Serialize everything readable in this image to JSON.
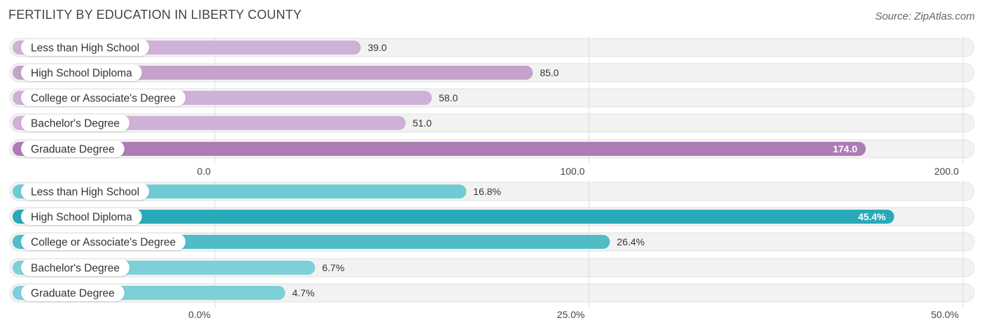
{
  "title": "FERTILITY BY EDUCATION IN LIBERTY COUNTY",
  "source": "Source: ZipAtlas.com",
  "chart_data": [
    {
      "type": "bar",
      "orientation": "horizontal",
      "categories": [
        "Less than High School",
        "High School Diploma",
        "College or Associate's Degree",
        "Bachelor's Degree",
        "Graduate Degree"
      ],
      "values": [
        39.0,
        85.0,
        58.0,
        51.0,
        174.0
      ],
      "value_labels": [
        "39.0",
        "85.0",
        "58.0",
        "51.0",
        "174.0"
      ],
      "xlim": [
        0,
        200
      ],
      "ticks": [
        0,
        100,
        200
      ],
      "tick_labels": [
        "0.0",
        "100.0",
        "200.0"
      ],
      "colors": [
        "#cfb0d6",
        "#c4a2cb",
        "#cfb0d6",
        "#cfb0d6",
        "#ad7bb6"
      ],
      "highlight_color": "#ad7bb6",
      "grid": true
    },
    {
      "type": "bar",
      "orientation": "horizontal",
      "categories": [
        "Less than High School",
        "High School Diploma",
        "College or Associate's Degree",
        "Bachelor's Degree",
        "Graduate Degree"
      ],
      "values": [
        16.8,
        45.4,
        26.4,
        6.7,
        4.7
      ],
      "value_labels": [
        "16.8%",
        "45.4%",
        "26.4%",
        "6.7%",
        "4.7%"
      ],
      "xlim": [
        0,
        50
      ],
      "ticks": [
        0,
        25,
        50
      ],
      "tick_labels": [
        "0.0%",
        "25.0%",
        "50.0%"
      ],
      "colors": [
        "#6fcbd3",
        "#2aa9b7",
        "#4fbcc6",
        "#7dd0d8",
        "#7dd0d8"
      ],
      "highlight_color": "#2aa9b7",
      "grid": true
    }
  ]
}
